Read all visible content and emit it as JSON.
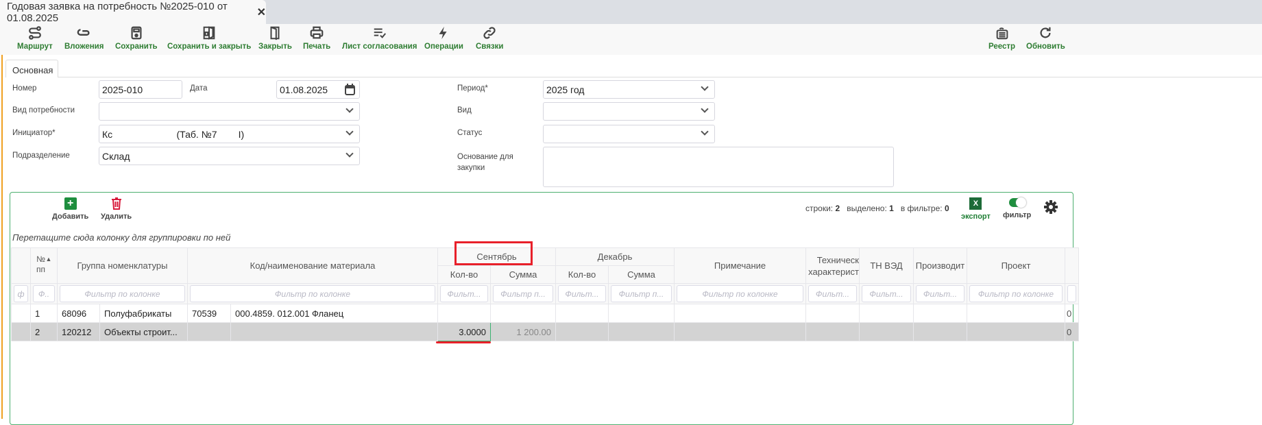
{
  "window": {
    "tab_title": "Годовая заявка на потребность №2025-010 от 01.08.2025",
    "close_icon": "close-icon"
  },
  "toolbar": {
    "items": [
      {
        "label": "Маршрут",
        "icon": "route-icon"
      },
      {
        "label": "Вложения",
        "icon": "paperclip-icon"
      },
      {
        "label": "Сохранить",
        "icon": "save-icon"
      },
      {
        "label": "Сохранить и закрыть",
        "icon": "save-close-icon"
      },
      {
        "label": "Закрыть",
        "icon": "door-icon"
      },
      {
        "label": "Печать",
        "icon": "printer-icon"
      },
      {
        "label": "Лист согласования",
        "icon": "checklist-icon"
      },
      {
        "label": "Операции",
        "icon": "lightning-icon"
      },
      {
        "label": "Связки",
        "icon": "link-icon"
      },
      {
        "label": "Реестр",
        "icon": "registry-icon"
      },
      {
        "label": "Обновить",
        "icon": "refresh-icon"
      }
    ],
    "accent": "#2e7d32"
  },
  "tabs": {
    "main": "Основная"
  },
  "form": {
    "number_label": "Номер",
    "number_value": "2025-010",
    "date_label": "Дата",
    "date_value": "01.08.2025",
    "need_type_label": "Вид потребности",
    "need_type_value": "",
    "initiator_label": "Инициатор*",
    "initiator_value": "Кс                        (Таб. №7        I)",
    "department_label": "Подразделение",
    "department_value": "Склад",
    "period_label": "Период*",
    "period_value": "2025 год",
    "kind_label": "Вид",
    "kind_value": "",
    "status_label": "Статус",
    "status_value": "",
    "basis_label": "Основание для закупки",
    "basis_value": ""
  },
  "grid": {
    "add_label": "Добавить",
    "delete_label": "Удалить",
    "rows_label": "строки:",
    "rows_value": "2",
    "selected_label": "выделено:",
    "selected_value": "1",
    "filtered_label": "в фильтре:",
    "filtered_value": "0",
    "export_label": "экспорт",
    "export_glyph": "X",
    "filter_label": "фильтр",
    "filter_on": true,
    "group_hint": "Перетащите сюда колонку для группировки по ней",
    "headers": {
      "num": "№ пп",
      "group": "Группа номенклатуры",
      "material": "Код/наименование материала",
      "september": "Сентябрь",
      "december": "Декабрь",
      "qty": "Кол-во",
      "sum": "Сумма",
      "note": "Примечание",
      "tech": "Техническ характерист",
      "tnved": "ТН ВЭД",
      "manufacturer": "Производит",
      "project": "Проект"
    },
    "filter_placeholder": "Фильтр по колонке",
    "filter_short": "Фильт...",
    "filter_mid": "Фильтр п...",
    "filter_tiny": "Ф..",
    "filter_first": "ф",
    "rows": [
      {
        "n": "1",
        "group_code": "68096",
        "group_name": "Полуфабрикаты",
        "mat_code": "70539",
        "mat_name": "000.4859. 012.001 Фланец",
        "sep_qty": "",
        "sep_sum": "",
        "last": "0"
      },
      {
        "n": "2",
        "group_code": "120212",
        "group_name": "Объекты строит...",
        "mat_code": "",
        "mat_name": "",
        "sep_qty": "3.0000",
        "sep_sum": "1 200.00",
        "last": "0"
      }
    ]
  }
}
